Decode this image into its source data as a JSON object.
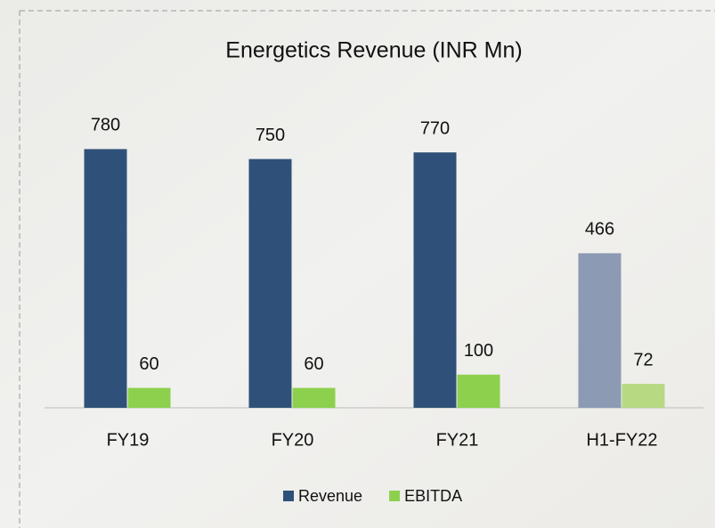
{
  "chart_data": {
    "type": "bar",
    "title": "Energetics Revenue (INR Mn)",
    "categories": [
      "FY19",
      "FY20",
      "FY21",
      "H1-FY22"
    ],
    "series": [
      {
        "name": "Revenue",
        "color": "#2f5179",
        "colors": [
          "#2f5179",
          "#2f5179",
          "#2f5179",
          "#8c9ab3"
        ],
        "values": [
          780,
          750,
          770,
          466
        ]
      },
      {
        "name": "EBITDA",
        "color": "#8dd04e",
        "colors": [
          "#8dd04e",
          "#8dd04e",
          "#8dd04e",
          "#b6d982"
        ],
        "values": [
          60,
          60,
          100,
          72
        ]
      }
    ],
    "ylim": [
      0,
      800
    ]
  }
}
